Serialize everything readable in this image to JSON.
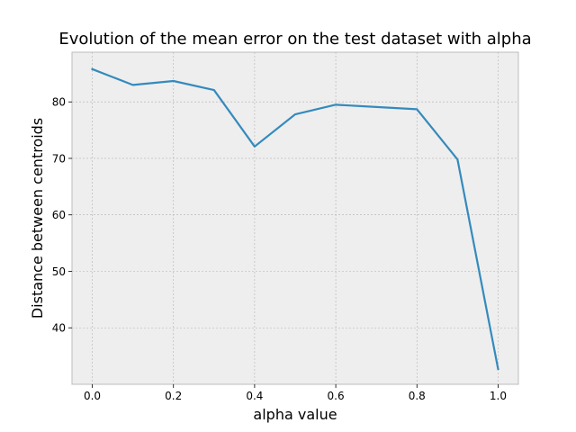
{
  "chart_data": {
    "type": "line",
    "title": "Evolution of the mean error on the test dataset with alpha",
    "xlabel": "alpha value",
    "ylabel": "Distance between centroids",
    "xlim": [
      -0.05,
      1.05
    ],
    "ylim": [
      30.0,
      88.8
    ],
    "xticks": [
      0.0,
      0.2,
      0.4,
      0.6,
      0.8,
      1.0
    ],
    "xtick_labels": [
      "0.0",
      "0.2",
      "0.4",
      "0.6",
      "0.8",
      "1.0"
    ],
    "yticks": [
      40,
      50,
      60,
      70,
      80
    ],
    "ytick_labels": [
      "40",
      "50",
      "60",
      "70",
      "80"
    ],
    "grid": true,
    "colors": {
      "line": "#348ABD",
      "axes_background": "#EEEEEE",
      "grid": "#B2B2B2",
      "spine": "#BCBCBC"
    },
    "series": [
      {
        "x": [
          0.0,
          0.1,
          0.2,
          0.3,
          0.4,
          0.5,
          0.6,
          0.7,
          0.8,
          0.9,
          1.0
        ],
        "values": [
          85.8,
          83.0,
          83.7,
          82.1,
          72.1,
          77.8,
          79.5,
          79.1,
          78.7,
          69.8,
          32.7
        ]
      }
    ]
  }
}
